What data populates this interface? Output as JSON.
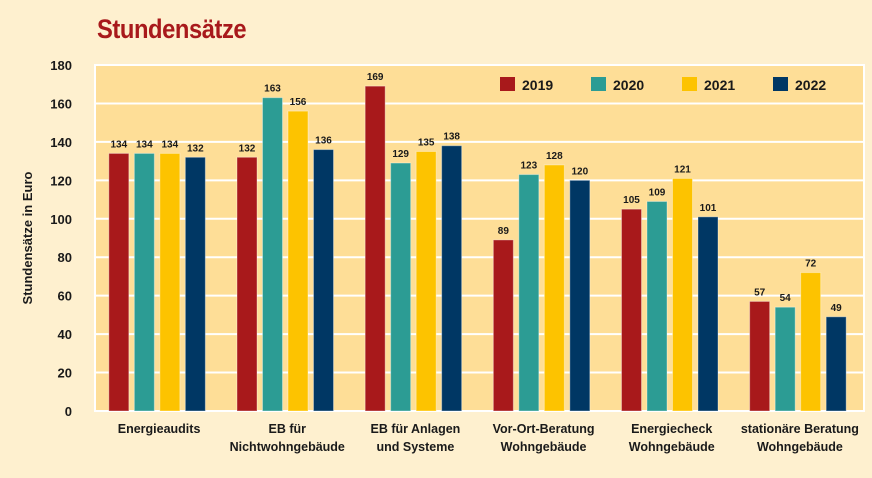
{
  "chart_data": {
    "type": "bar",
    "title": "Stundensätze",
    "xlabel": "",
    "ylabel": "Stundensätze in Euro",
    "ylim": [
      0,
      180
    ],
    "yticks": [
      0,
      20,
      40,
      60,
      80,
      100,
      120,
      140,
      160,
      180
    ],
    "grid": true,
    "legend_placement": "top-right",
    "categories": [
      [
        "Energieaudits"
      ],
      [
        "EB für",
        "Nichtwohngebäude"
      ],
      [
        "EB für Anlagen",
        "und Systeme"
      ],
      [
        "Vor-Ort-Beratung",
        "Wohngebäude"
      ],
      [
        "Energiecheck",
        "Wohngebäude"
      ],
      [
        "stationäre Beratung",
        "Wohngebäude"
      ]
    ],
    "series": [
      {
        "name": "2019",
        "color": "#a8191b",
        "values": [
          134,
          132,
          169,
          89,
          105,
          57
        ]
      },
      {
        "name": "2020",
        "color": "#2c9c94",
        "values": [
          134,
          163,
          129,
          123,
          109,
          54
        ]
      },
      {
        "name": "2021",
        "color": "#fdc300",
        "values": [
          134,
          156,
          135,
          128,
          121,
          72
        ]
      },
      {
        "name": "2022",
        "color": "#003764",
        "values": [
          132,
          136,
          138,
          120,
          101,
          49
        ]
      }
    ],
    "plot_background": "#fede97"
  }
}
